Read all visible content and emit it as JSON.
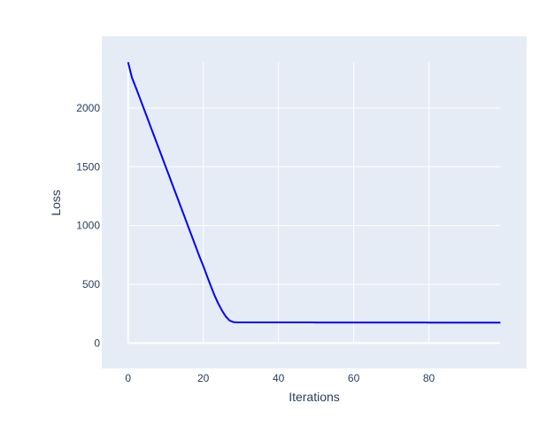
{
  "chart_data": {
    "type": "line",
    "title": "",
    "xlabel": "Iterations",
    "ylabel": "Loss",
    "xlim": [
      -7,
      106
    ],
    "ylim": [
      -216,
      2610
    ],
    "xticks": [
      0,
      20,
      40,
      60,
      80
    ],
    "yticks": [
      0,
      500,
      1000,
      1500,
      2000
    ],
    "xtick_labels": [
      "0",
      "20",
      "40",
      "60",
      "80"
    ],
    "ytick_labels": [
      "0",
      "500",
      "1000",
      "1500",
      "2000"
    ],
    "grid": true,
    "legend": "none",
    "colors": {
      "line": "#0000ff",
      "plot_bg": "#e5ecf6",
      "grid": "#ffffff",
      "text": "#2a3f5f"
    },
    "series": [
      {
        "x_start": 0,
        "x_step": 1,
        "values": [
          2390,
          2260,
          2180,
          2095,
          2010,
          1925,
          1840,
          1755,
          1670,
          1585,
          1500,
          1415,
          1330,
          1245,
          1160,
          1075,
          990,
          905,
          820,
          735,
          655,
          570,
          485,
          405,
          335,
          275,
          225,
          192,
          178,
          176,
          176,
          176,
          176,
          176,
          176,
          176,
          176,
          176,
          176,
          176,
          176,
          176,
          176,
          176,
          176,
          176,
          176,
          176,
          176,
          176,
          175,
          175,
          175,
          175,
          175,
          175,
          175,
          175,
          175,
          175,
          175,
          175,
          175,
          175,
          175,
          175,
          175,
          175,
          175,
          175,
          175,
          175,
          175,
          175,
          175,
          175,
          175,
          175,
          175,
          175,
          174,
          174,
          174,
          174,
          174,
          174,
          174,
          174,
          174,
          174,
          174,
          174,
          174,
          174,
          174,
          174,
          174,
          174,
          174,
          174
        ]
      }
    ]
  }
}
